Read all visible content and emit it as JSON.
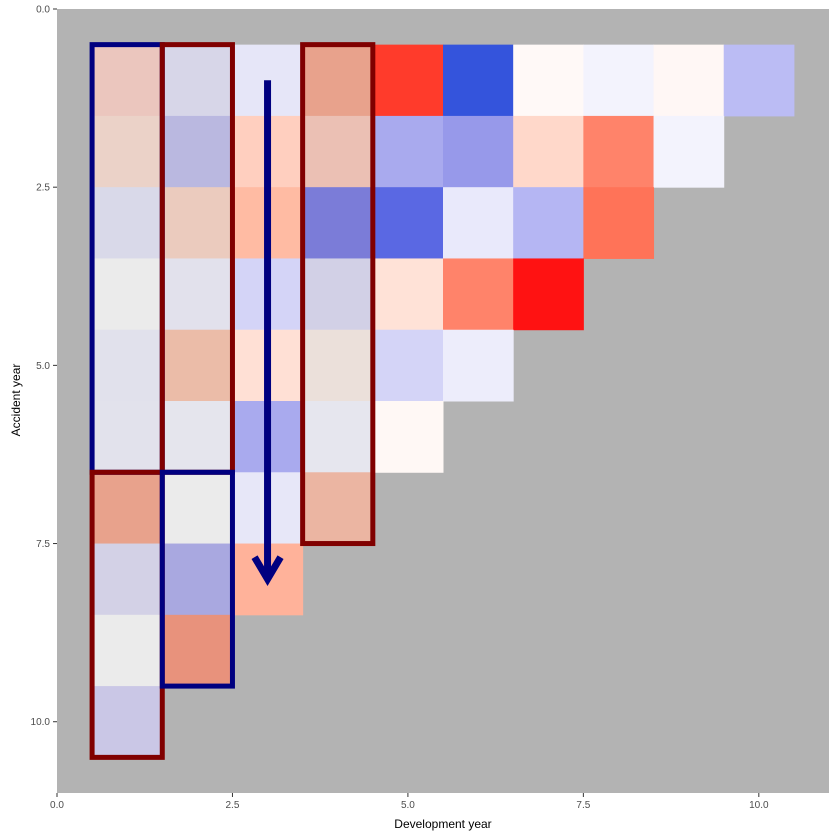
{
  "chart_data": {
    "type": "heatmap",
    "title": "",
    "xlabel": "Development year",
    "ylabel": "Accident year",
    "xlim": [
      0,
      11.0
    ],
    "ylim": [
      0,
      11.0
    ],
    "y_reversed": true,
    "x_ticks": [
      0.0,
      2.5,
      5.0,
      7.5,
      10.0
    ],
    "x_tick_labels": [
      "0.0",
      "2.5",
      "5.0",
      "7.5",
      "10.0"
    ],
    "y_ticks": [
      0.0,
      2.5,
      5.0,
      7.5,
      10.0
    ],
    "y_tick_labels": [
      "0.0",
      "2.5",
      "5.0",
      "7.5",
      "10.0"
    ],
    "panel_background": "#b3b3b3",
    "grid": false,
    "cells": [
      {
        "acc": 1,
        "dev": 1,
        "color": "#ebc6be"
      },
      {
        "acc": 1,
        "dev": 2,
        "color": "#d7d6e8"
      },
      {
        "acc": 1,
        "dev": 3,
        "color": "#e6e6f8"
      },
      {
        "acc": 1,
        "dev": 4,
        "color": "#e8a28c"
      },
      {
        "acc": 1,
        "dev": 5,
        "color": "#ff3b2b"
      },
      {
        "acc": 1,
        "dev": 6,
        "color": "#3454dc"
      },
      {
        "acc": 1,
        "dev": 7,
        "color": "#fff9f7"
      },
      {
        "acc": 1,
        "dev": 8,
        "color": "#f3f3fd"
      },
      {
        "acc": 1,
        "dev": 9,
        "color": "#fff7f5"
      },
      {
        "acc": 1,
        "dev": 10,
        "color": "#bbbcf4"
      },
      {
        "acc": 2,
        "dev": 1,
        "color": "#ebd2c8"
      },
      {
        "acc": 2,
        "dev": 2,
        "color": "#bab8e0"
      },
      {
        "acc": 2,
        "dev": 3,
        "color": "#ffcfbf"
      },
      {
        "acc": 2,
        "dev": 4,
        "color": "#ebc0b4"
      },
      {
        "acc": 2,
        "dev": 5,
        "color": "#a9aaee"
      },
      {
        "acc": 2,
        "dev": 6,
        "color": "#9799ea"
      },
      {
        "acc": 2,
        "dev": 7,
        "color": "#ffd8ca"
      },
      {
        "acc": 2,
        "dev": 8,
        "color": "#ff836a"
      },
      {
        "acc": 2,
        "dev": 9,
        "color": "#f3f3fd"
      },
      {
        "acc": 3,
        "dev": 1,
        "color": "#d9d9e9"
      },
      {
        "acc": 3,
        "dev": 2,
        "color": "#ebcbbe"
      },
      {
        "acc": 3,
        "dev": 3,
        "color": "#ffbba3"
      },
      {
        "acc": 3,
        "dev": 4,
        "color": "#7b7cd8"
      },
      {
        "acc": 3,
        "dev": 5,
        "color": "#5a68e3"
      },
      {
        "acc": 3,
        "dev": 6,
        "color": "#e9e9fb"
      },
      {
        "acc": 3,
        "dev": 7,
        "color": "#b5b6f3"
      },
      {
        "acc": 3,
        "dev": 8,
        "color": "#ff7358"
      },
      {
        "acc": 4,
        "dev": 1,
        "color": "#ebebeb"
      },
      {
        "acc": 4,
        "dev": 2,
        "color": "#e2e1ec"
      },
      {
        "acc": 4,
        "dev": 3,
        "color": "#d4d4f7"
      },
      {
        "acc": 4,
        "dev": 4,
        "color": "#d2d0e6"
      },
      {
        "acc": 4,
        "dev": 5,
        "color": "#ffe2d7"
      },
      {
        "acc": 4,
        "dev": 6,
        "color": "#ff836a"
      },
      {
        "acc": 4,
        "dev": 7,
        "color": "#ff1212"
      },
      {
        "acc": 5,
        "dev": 1,
        "color": "#e1e1ec"
      },
      {
        "acc": 5,
        "dev": 2,
        "color": "#ebbca8"
      },
      {
        "acc": 5,
        "dev": 3,
        "color": "#ffe0d5"
      },
      {
        "acc": 5,
        "dev": 4,
        "color": "#ebe0da"
      },
      {
        "acc": 5,
        "dev": 5,
        "color": "#d4d4f7"
      },
      {
        "acc": 5,
        "dev": 6,
        "color": "#ededfb"
      },
      {
        "acc": 6,
        "dev": 1,
        "color": "#e2e2ec"
      },
      {
        "acc": 6,
        "dev": 2,
        "color": "#e5e5ed"
      },
      {
        "acc": 6,
        "dev": 3,
        "color": "#a9aaee"
      },
      {
        "acc": 6,
        "dev": 4,
        "color": "#e6e6ee"
      },
      {
        "acc": 6,
        "dev": 5,
        "color": "#fff8f5"
      },
      {
        "acc": 7,
        "dev": 1,
        "color": "#e8a28c"
      },
      {
        "acc": 7,
        "dev": 2,
        "color": "#ebebeb"
      },
      {
        "acc": 7,
        "dev": 3,
        "color": "#e7e7f8"
      },
      {
        "acc": 7,
        "dev": 4,
        "color": "#ebb5a2"
      },
      {
        "acc": 8,
        "dev": 1,
        "color": "#d3d1e6"
      },
      {
        "acc": 8,
        "dev": 2,
        "color": "#a9a8e0"
      },
      {
        "acc": 8,
        "dev": 3,
        "color": "#ffb29a"
      },
      {
        "acc": 9,
        "dev": 1,
        "color": "#ebebeb"
      },
      {
        "acc": 9,
        "dev": 2,
        "color": "#e8927c"
      },
      {
        "acc": 10,
        "dev": 1,
        "color": "#cac7e6"
      }
    ],
    "highlight_boxes": [
      {
        "dev_from": 0.5,
        "dev_to": 1.5,
        "acc_from": 0.5,
        "acc_to": 6.5,
        "color": "#000080"
      },
      {
        "dev_from": 1.5,
        "dev_to": 2.5,
        "acc_from": 0.5,
        "acc_to": 6.5,
        "color": "#800000"
      },
      {
        "dev_from": 3.5,
        "dev_to": 4.5,
        "acc_from": 0.5,
        "acc_to": 7.5,
        "color": "#800000"
      },
      {
        "dev_from": 0.5,
        "dev_to": 1.5,
        "acc_from": 6.5,
        "acc_to": 10.5,
        "color": "#800000"
      },
      {
        "dev_from": 1.5,
        "dev_to": 2.5,
        "acc_from": 6.5,
        "acc_to": 9.5,
        "color": "#000080"
      }
    ],
    "arrow": {
      "dev": 3.0,
      "acc_from": 1.0,
      "acc_to": 8.0,
      "color": "#000080"
    }
  }
}
